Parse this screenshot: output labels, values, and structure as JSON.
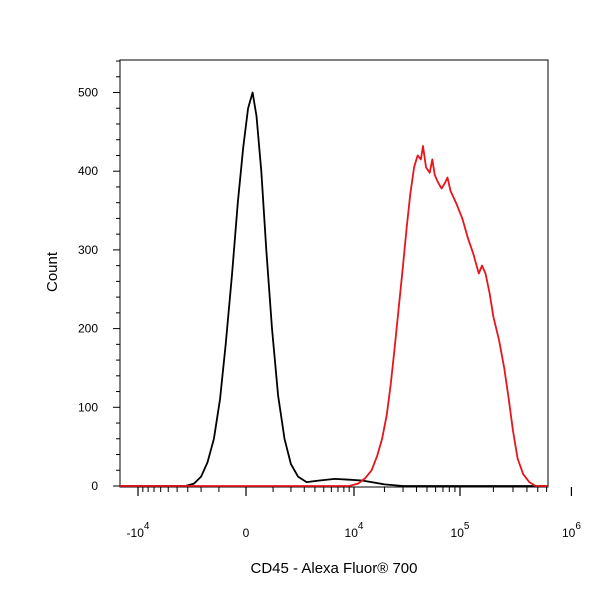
{
  "chart_data": {
    "type": "line",
    "title": "",
    "xlabel": "CD45 - Alexa Fluor® 700",
    "ylabel": "Count",
    "x_scale": "biexponential",
    "ylim": [
      0,
      550
    ],
    "grid": false,
    "y_ticks": [
      {
        "value": 0,
        "label": "0"
      },
      {
        "value": 100,
        "label": "100"
      },
      {
        "value": 200,
        "label": "200"
      },
      {
        "value": 300,
        "label": "300"
      },
      {
        "value": 400,
        "label": "400"
      },
      {
        "value": 500,
        "label": "500"
      }
    ],
    "x_ticks": [
      {
        "value": -10000,
        "base": "-10",
        "exp": "4"
      },
      {
        "value": 0,
        "base": "0",
        "exp": ""
      },
      {
        "value": 10000,
        "base": "10",
        "exp": "4"
      },
      {
        "value": 100000,
        "base": "10",
        "exp": "5"
      },
      {
        "value": 1000000,
        "base": "10",
        "exp": "6"
      }
    ],
    "series": [
      {
        "color": "#000000",
        "points": [
          [
            -30000,
            0
          ],
          [
            -3200,
            0
          ],
          [
            -2500,
            3
          ],
          [
            -2000,
            12
          ],
          [
            -1600,
            30
          ],
          [
            -1250,
            60
          ],
          [
            -950,
            110
          ],
          [
            -700,
            180
          ],
          [
            -450,
            270
          ],
          [
            -250,
            360
          ],
          [
            -80,
            430
          ],
          [
            60,
            480
          ],
          [
            200,
            500
          ],
          [
            330,
            470
          ],
          [
            500,
            400
          ],
          [
            700,
            300
          ],
          [
            950,
            200
          ],
          [
            1250,
            115
          ],
          [
            1600,
            60
          ],
          [
            2000,
            28
          ],
          [
            2500,
            12
          ],
          [
            3200,
            5
          ],
          [
            4500,
            7
          ],
          [
            6500,
            9
          ],
          [
            9000,
            8
          ],
          [
            12000,
            7
          ],
          [
            15000,
            5
          ],
          [
            20000,
            2
          ],
          [
            30000,
            0
          ],
          [
            1500000,
            0
          ]
        ]
      },
      {
        "color": "#e8141c",
        "points": [
          [
            -30000,
            0
          ],
          [
            9000,
            0
          ],
          [
            11000,
            3
          ],
          [
            13000,
            10
          ],
          [
            15000,
            20
          ],
          [
            17000,
            38
          ],
          [
            19000,
            60
          ],
          [
            21000,
            90
          ],
          [
            23000,
            130
          ],
          [
            25000,
            175
          ],
          [
            27500,
            230
          ],
          [
            30000,
            280
          ],
          [
            32500,
            330
          ],
          [
            35000,
            370
          ],
          [
            38000,
            405
          ],
          [
            41000,
            420
          ],
          [
            44000,
            415
          ],
          [
            46000,
            432
          ],
          [
            49000,
            405
          ],
          [
            53000,
            398
          ],
          [
            56000,
            415
          ],
          [
            59000,
            395
          ],
          [
            63000,
            386
          ],
          [
            68000,
            378
          ],
          [
            73000,
            385
          ],
          [
            77000,
            392
          ],
          [
            82000,
            375
          ],
          [
            92000,
            360
          ],
          [
            105000,
            340
          ],
          [
            118000,
            315
          ],
          [
            132000,
            295
          ],
          [
            148000,
            270
          ],
          [
            158000,
            280
          ],
          [
            170000,
            270
          ],
          [
            185000,
            245
          ],
          [
            200000,
            215
          ],
          [
            225000,
            185
          ],
          [
            250000,
            150
          ],
          [
            275000,
            110
          ],
          [
            300000,
            70
          ],
          [
            330000,
            35
          ],
          [
            370000,
            15
          ],
          [
            420000,
            5
          ],
          [
            480000,
            0
          ],
          [
            1500000,
            0
          ]
        ]
      }
    ]
  }
}
